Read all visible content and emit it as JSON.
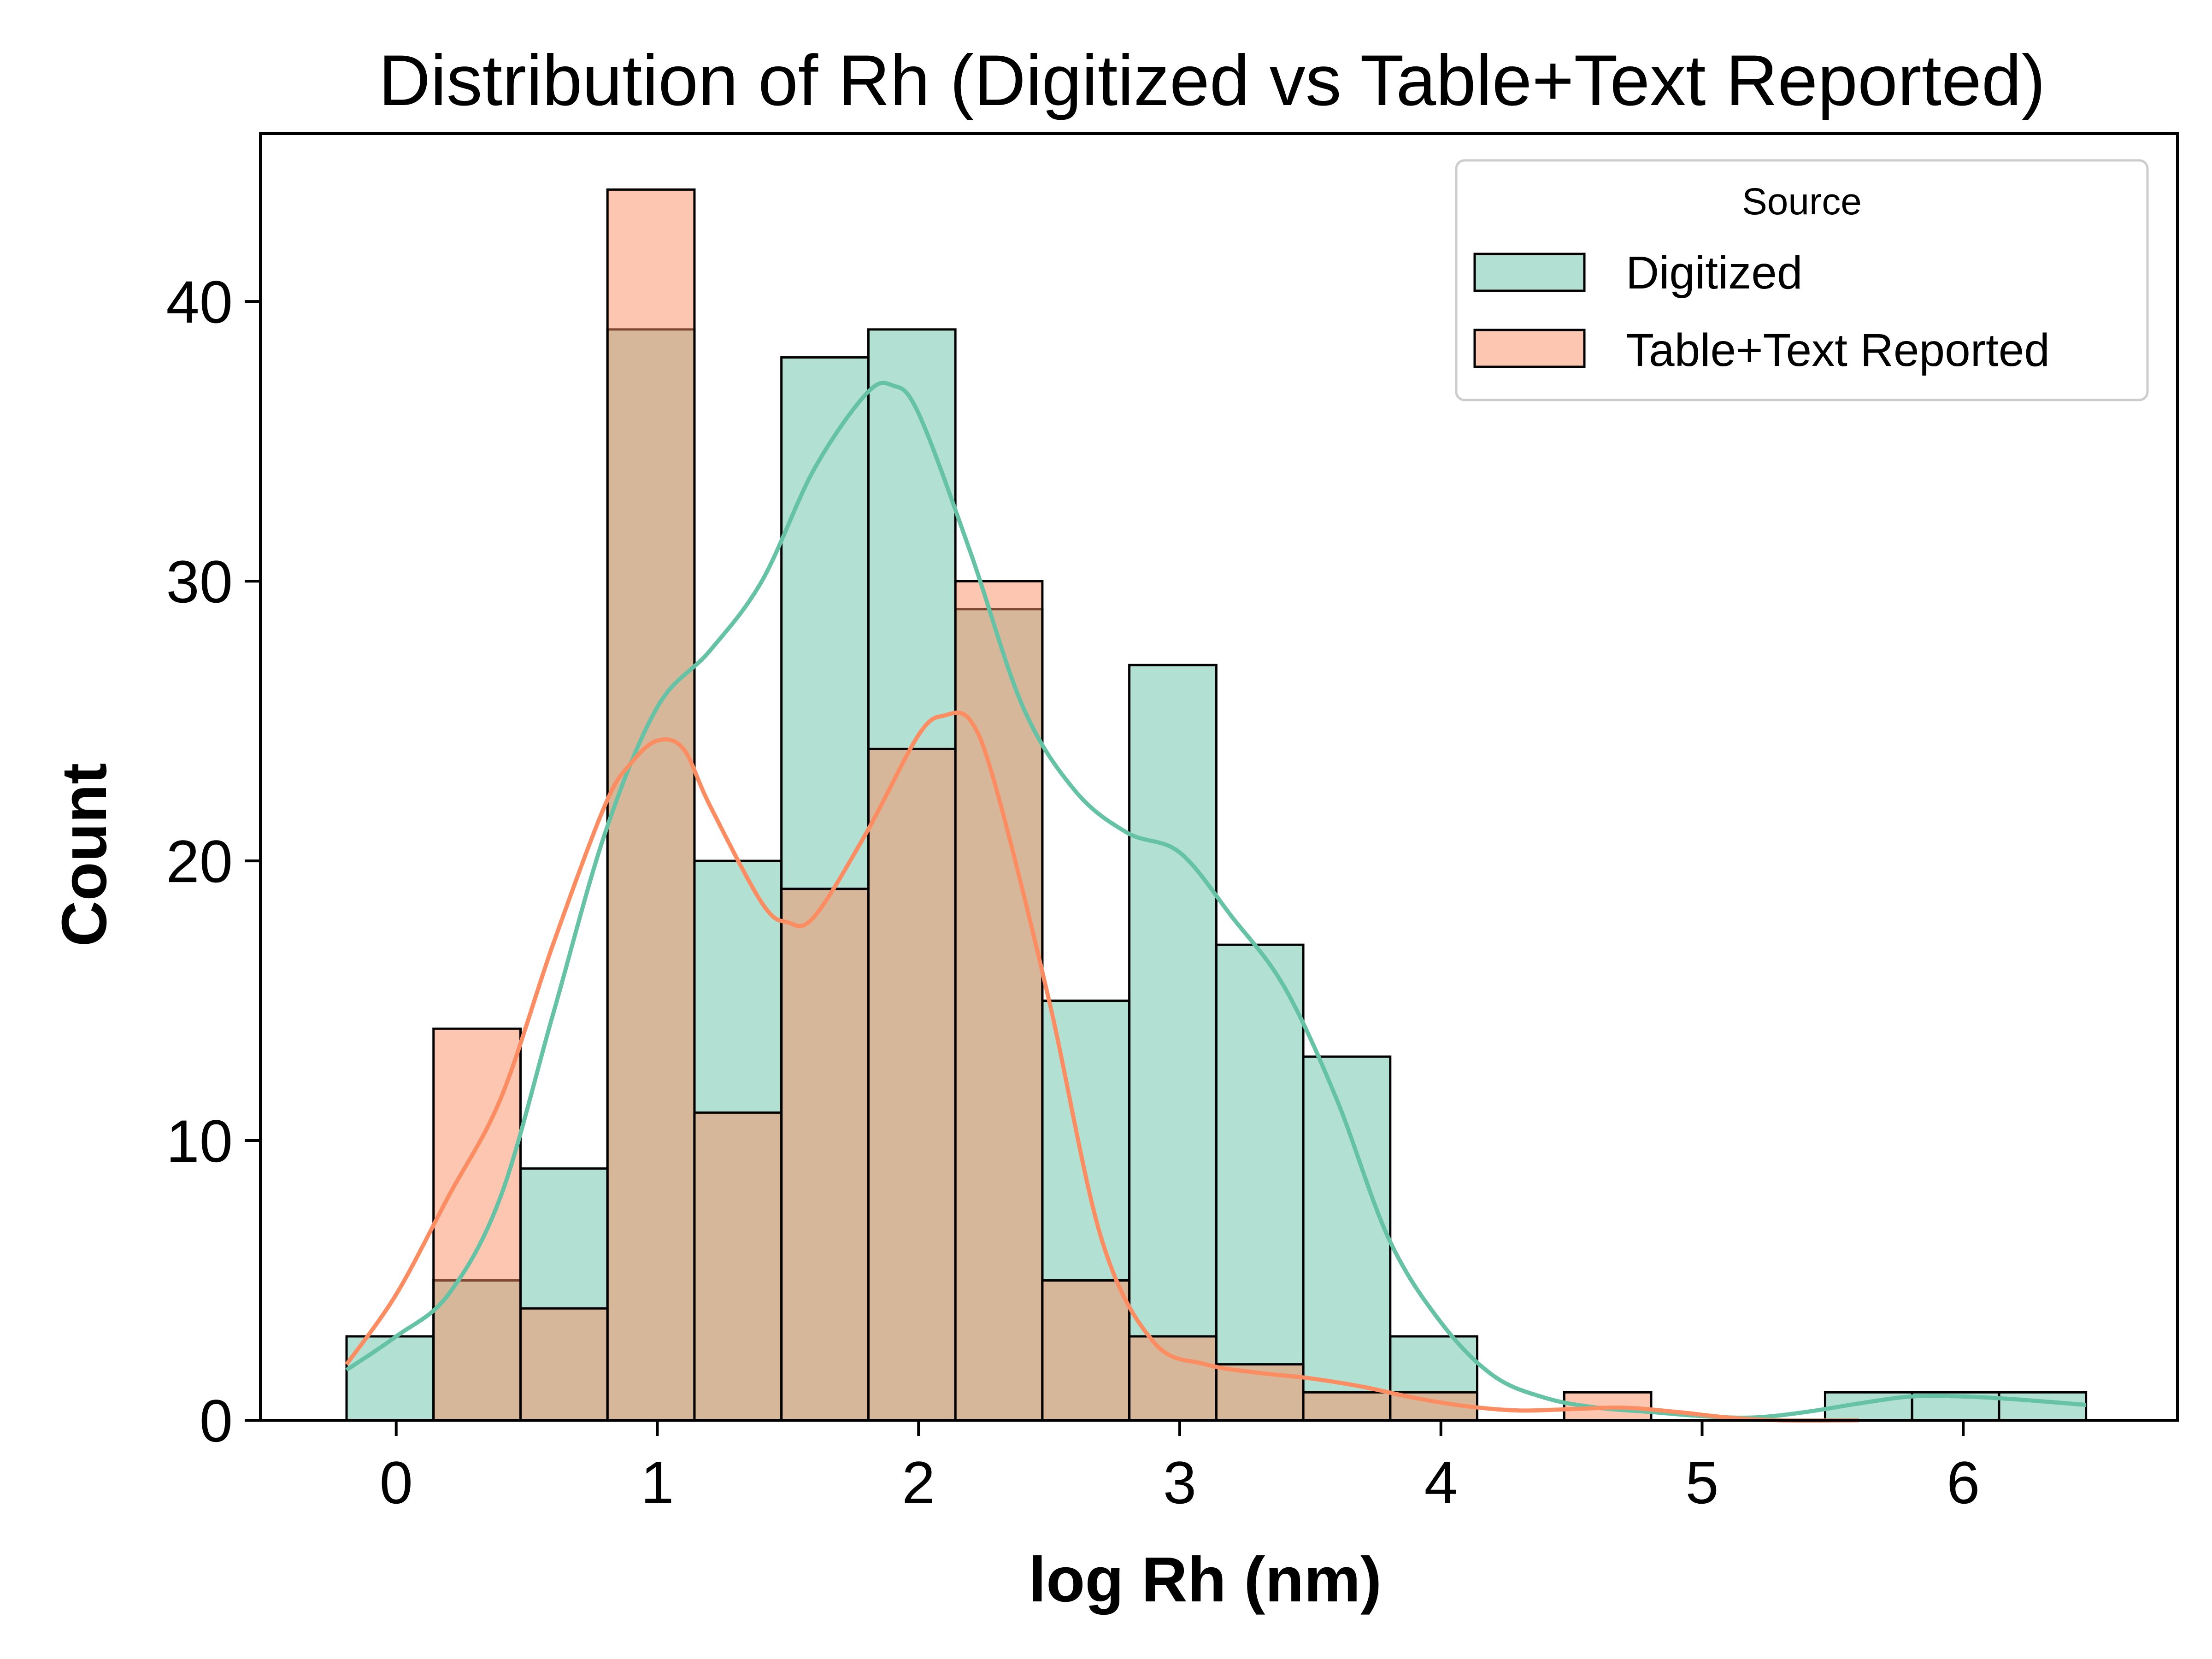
{
  "chart_data": {
    "type": "histogram",
    "title": "Distribution of Rh (Digitized vs Table+Text Reported)",
    "xlabel": "log Rh (nm)",
    "ylabel": "Count",
    "xlim": [
      -0.52,
      6.82
    ],
    "ylim": [
      0,
      46
    ],
    "x_ticks": [
      0,
      1,
      2,
      3,
      4,
      5,
      6
    ],
    "y_ticks": [
      0,
      10,
      20,
      30,
      40
    ],
    "grid": false,
    "bins": [
      -0.19,
      0.143,
      0.476,
      0.809,
      1.142,
      1.475,
      1.808,
      2.141,
      2.474,
      2.807,
      3.14,
      3.473,
      3.806,
      4.139,
      4.472,
      4.805,
      5.138,
      5.471,
      5.804,
      6.137,
      6.47
    ],
    "legend": {
      "title": "Source",
      "position": "top-right",
      "entries": [
        "Digitized",
        "Table+Text Reported"
      ]
    },
    "series": [
      {
        "name": "Digitized",
        "color": "#66c2a5",
        "counts": [
          3,
          5,
          9,
          39,
          20,
          38,
          39,
          29,
          15,
          27,
          17,
          13,
          3,
          0,
          0,
          0,
          0,
          1,
          1,
          1
        ],
        "kde": [
          [
            -0.19,
            1.8
          ],
          [
            0.0,
            3.0
          ],
          [
            0.2,
            4.5
          ],
          [
            0.4,
            8.0
          ],
          [
            0.6,
            14.5
          ],
          [
            0.8,
            21.0
          ],
          [
            1.0,
            25.5
          ],
          [
            1.2,
            27.5
          ],
          [
            1.4,
            30.0
          ],
          [
            1.6,
            34.0
          ],
          [
            1.8,
            36.7
          ],
          [
            1.9,
            37.0
          ],
          [
            2.0,
            36.0
          ],
          [
            2.2,
            31.0
          ],
          [
            2.4,
            25.5
          ],
          [
            2.6,
            22.5
          ],
          [
            2.8,
            21.0
          ],
          [
            3.0,
            20.3
          ],
          [
            3.2,
            18.0
          ],
          [
            3.4,
            15.5
          ],
          [
            3.6,
            11.5
          ],
          [
            3.8,
            6.5
          ],
          [
            4.0,
            3.5
          ],
          [
            4.2,
            1.6
          ],
          [
            4.4,
            0.8
          ],
          [
            4.6,
            0.45
          ],
          [
            4.8,
            0.3
          ],
          [
            5.0,
            0.15
          ],
          [
            5.2,
            0.1
          ],
          [
            5.4,
            0.3
          ],
          [
            5.6,
            0.6
          ],
          [
            5.8,
            0.85
          ],
          [
            6.0,
            0.85
          ],
          [
            6.2,
            0.75
          ],
          [
            6.47,
            0.55
          ]
        ]
      },
      {
        "name": "Table+Text Reported",
        "color": "#fc8d62",
        "counts": [
          0,
          14,
          4,
          44,
          11,
          19,
          24,
          30,
          5,
          3,
          2,
          1,
          1,
          0,
          1,
          0,
          0,
          0,
          0,
          0
        ],
        "kde": [
          [
            -0.19,
            2.0
          ],
          [
            0.0,
            4.5
          ],
          [
            0.2,
            8.0
          ],
          [
            0.4,
            11.5
          ],
          [
            0.6,
            17.0
          ],
          [
            0.8,
            22.0
          ],
          [
            0.9,
            23.5
          ],
          [
            1.0,
            24.3
          ],
          [
            1.1,
            24.0
          ],
          [
            1.2,
            22.0
          ],
          [
            1.4,
            18.5
          ],
          [
            1.5,
            17.8
          ],
          [
            1.6,
            18.0
          ],
          [
            1.8,
            21.0
          ],
          [
            2.0,
            24.5
          ],
          [
            2.1,
            25.2
          ],
          [
            2.2,
            25.0
          ],
          [
            2.3,
            22.5
          ],
          [
            2.5,
            15.0
          ],
          [
            2.7,
            6.5
          ],
          [
            2.9,
            2.8
          ],
          [
            3.1,
            2.0
          ],
          [
            3.3,
            1.7
          ],
          [
            3.5,
            1.5
          ],
          [
            3.7,
            1.2
          ],
          [
            3.9,
            0.8
          ],
          [
            4.1,
            0.5
          ],
          [
            4.3,
            0.35
          ],
          [
            4.5,
            0.4
          ],
          [
            4.7,
            0.45
          ],
          [
            4.9,
            0.3
          ],
          [
            5.1,
            0.1
          ],
          [
            5.3,
            0.0
          ],
          [
            5.6,
            0.0
          ]
        ]
      }
    ]
  }
}
